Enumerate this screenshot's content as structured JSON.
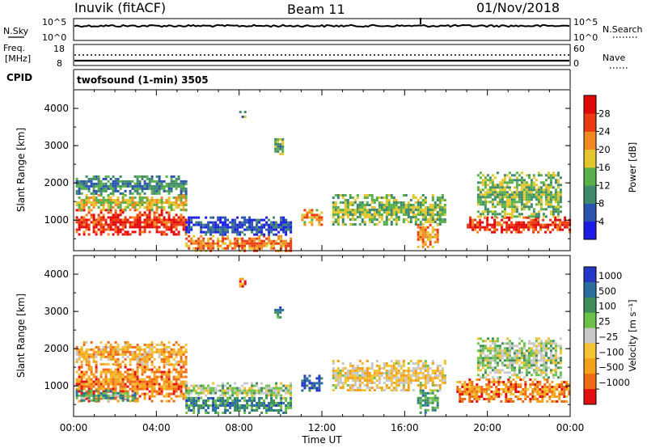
{
  "header": {
    "station": "Inuvik (fitACF)",
    "beam": "Beam 11",
    "date": "01/Nov/2018"
  },
  "top_strip": {
    "left_label": "N.Sky",
    "right_label": "N.Search",
    "left_ticks": [
      "10^5",
      "10^0"
    ],
    "right_ticks": [
      "10^5",
      "10^0"
    ]
  },
  "freq_strip": {
    "left_label_1": "Freq.",
    "left_label_2": "[MHz]",
    "right_label": "Nave",
    "left_ticks": [
      "18",
      "8"
    ],
    "right_ticks": [
      "60",
      "0"
    ]
  },
  "cpid": {
    "label": "CPID",
    "value": "twofsound (1-min) 3505"
  },
  "chart_data": [
    {
      "type": "heatmap",
      "name": "power",
      "ylabel": "Slant Range [km]",
      "yticks": [
        1000,
        2000,
        3000,
        4000
      ],
      "ylim": [
        180,
        4500
      ],
      "xlim": [
        0,
        24
      ],
      "xticks": [
        "00:00",
        "04:00",
        "08:00",
        "12:00",
        "16:00",
        "20:00",
        "00:00"
      ],
      "colorbar_label": "Power [dB]",
      "colorbar_ticks": [
        "4",
        "8",
        "12",
        "16",
        "20",
        "24",
        "28"
      ],
      "colorbar_range": [
        0,
        32
      ],
      "colors": [
        "#1c1ce6",
        "#2a54b0",
        "#3f8a6a",
        "#58b04a",
        "#e3c62f",
        "#f08a1e",
        "#ec3a12",
        "#e30808"
      ],
      "regions": [
        {
          "t0": 0.1,
          "t1": 5.4,
          "r0": 620,
          "r1": 1300,
          "level": 0.86
        },
        {
          "t0": 0.1,
          "t1": 5.4,
          "r0": 1300,
          "r1": 1700,
          "level": 0.55
        },
        {
          "t0": 0.1,
          "t1": 5.4,
          "r0": 1700,
          "r1": 2200,
          "level": 0.3
        },
        {
          "t0": 5.4,
          "t1": 10.5,
          "r0": 200,
          "r1": 600,
          "level": 0.7
        },
        {
          "t0": 5.4,
          "t1": 10.5,
          "r0": 600,
          "r1": 1100,
          "level": 0.15
        },
        {
          "t0": 11.0,
          "t1": 12.0,
          "r0": 900,
          "r1": 1300,
          "level": 0.65
        },
        {
          "t0": 12.5,
          "t1": 18.0,
          "r0": 900,
          "r1": 1700,
          "level": 0.45
        },
        {
          "t0": 16.6,
          "t1": 17.6,
          "r0": 300,
          "r1": 900,
          "level": 0.7
        },
        {
          "t0": 19.0,
          "t1": 24.0,
          "r0": 700,
          "r1": 1100,
          "level": 0.85
        },
        {
          "t0": 19.5,
          "t1": 23.5,
          "r0": 1100,
          "r1": 2300,
          "level": 0.45
        },
        {
          "t0": 9.7,
          "t1": 10.1,
          "r0": 2800,
          "r1": 3200,
          "level": 0.4
        },
        {
          "t0": 8.0,
          "t1": 8.3,
          "r0": 3800,
          "r1": 4000,
          "level": 0.35
        }
      ]
    },
    {
      "type": "heatmap",
      "name": "velocity",
      "ylabel": "Slant Range [km]",
      "yticks": [
        1000,
        2000,
        3000,
        4000
      ],
      "ylim": [
        180,
        4500
      ],
      "xlim": [
        0,
        24
      ],
      "xticks": [
        "00:00",
        "04:00",
        "08:00",
        "12:00",
        "16:00",
        "20:00",
        "00:00"
      ],
      "xlabel": "Time UT",
      "colorbar_label": "Velocity [m s⁻¹]",
      "colorbar_ticks": [
        "1000",
        "500",
        "100",
        "25",
        "−25",
        "−100",
        "−500",
        "−1000"
      ],
      "colors": [
        "#2438c8",
        "#2a6e9e",
        "#3e8f5a",
        "#6cc14a",
        "#c8c8c8",
        "#f4c232",
        "#f3a11c",
        "#ee6a14",
        "#e31010"
      ],
      "regions": [
        {
          "t0": 0.1,
          "t1": 5.4,
          "r0": 620,
          "r1": 1600,
          "level": 0.78
        },
        {
          "t0": 0.1,
          "t1": 5.4,
          "r0": 1600,
          "r1": 2200,
          "level": 0.68
        },
        {
          "t0": 0.1,
          "t1": 3.0,
          "r0": 620,
          "r1": 900,
          "level": 0.3
        },
        {
          "t0": 5.4,
          "t1": 10.5,
          "r0": 300,
          "r1": 700,
          "level": 0.25
        },
        {
          "t0": 5.4,
          "t1": 10.5,
          "r0": 700,
          "r1": 1100,
          "level": 0.45
        },
        {
          "t0": 11.0,
          "t1": 12.0,
          "r0": 900,
          "r1": 1300,
          "level": 0.1
        },
        {
          "t0": 12.5,
          "t1": 18.0,
          "r0": 900,
          "r1": 1700,
          "level": 0.6
        },
        {
          "t0": 16.6,
          "t1": 17.6,
          "r0": 300,
          "r1": 900,
          "level": 0.3
        },
        {
          "t0": 18.5,
          "t1": 24.0,
          "r0": 600,
          "r1": 1200,
          "level": 0.78
        },
        {
          "t0": 19.5,
          "t1": 23.5,
          "r0": 1200,
          "r1": 2300,
          "level": 0.45
        },
        {
          "t0": 9.7,
          "t1": 10.1,
          "r0": 2800,
          "r1": 3200,
          "level": 0.25
        },
        {
          "t0": 8.0,
          "t1": 8.3,
          "r0": 3700,
          "r1": 3900,
          "level": 0.82
        }
      ]
    }
  ]
}
